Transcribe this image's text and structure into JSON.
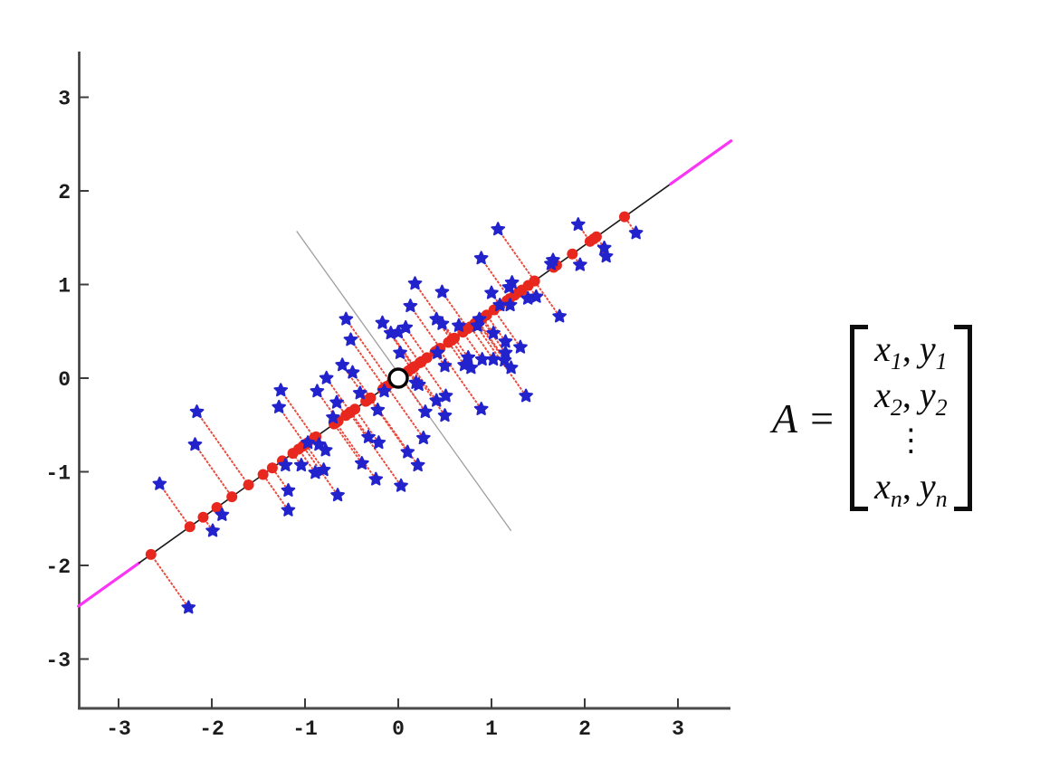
{
  "chart_data": {
    "type": "scatter",
    "title": "",
    "xlabel": "",
    "ylabel": "",
    "xlim": [
      -3.5,
      3.6
    ],
    "ylim": [
      -3.6,
      3.5
    ],
    "x_ticks": [
      "-3",
      "-2",
      "-1",
      "0",
      "1",
      "2",
      "3"
    ],
    "y_ticks": [
      "3",
      "2",
      "1",
      "0",
      "-1",
      "-2",
      "-3"
    ],
    "grid": false,
    "legend": null,
    "series": [
      {
        "name": "samples",
        "marker": "star",
        "color": "#2323cd",
        "points": [
          [
            -2.56,
            -1.13
          ],
          [
            -2.25,
            -2.45
          ],
          [
            -2.18,
            -0.71
          ],
          [
            -2.16,
            -0.36
          ],
          [
            -1.99,
            -1.63
          ],
          [
            -1.89,
            -1.46
          ],
          [
            -1.28,
            -0.31
          ],
          [
            -1.26,
            -0.13
          ],
          [
            -1.21,
            -0.93
          ],
          [
            -1.18,
            -1.41
          ],
          [
            -1.18,
            -1.2
          ],
          [
            -1.04,
            -0.93
          ],
          [
            -0.97,
            -0.69
          ],
          [
            -0.89,
            -1.01
          ],
          [
            -0.87,
            -0.14
          ],
          [
            -0.85,
            -0.71
          ],
          [
            -0.8,
            -0.98
          ],
          [
            -0.78,
            -0.77
          ],
          [
            -0.77,
            0.0
          ],
          [
            -0.7,
            -0.42
          ],
          [
            -0.66,
            -0.26
          ],
          [
            -0.65,
            -1.25
          ],
          [
            -0.6,
            0.14
          ],
          [
            -0.56,
            0.63
          ],
          [
            -0.51,
            0.41
          ],
          [
            -0.49,
            0.06
          ],
          [
            -0.41,
            -0.16
          ],
          [
            -0.39,
            -0.91
          ],
          [
            -0.32,
            -0.63
          ],
          [
            -0.24,
            -1.08
          ],
          [
            -0.22,
            -0.34
          ],
          [
            -0.21,
            -0.69
          ],
          [
            -0.17,
            0.59
          ],
          [
            -0.15,
            -0.14
          ],
          [
            -0.08,
            0.48
          ],
          [
            0.0,
            0.49
          ],
          [
            0.02,
            0.27
          ],
          [
            0.03,
            -1.15
          ],
          [
            0.08,
            0.54
          ],
          [
            0.1,
            -0.79
          ],
          [
            0.13,
            0.77
          ],
          [
            0.18,
            1.01
          ],
          [
            0.19,
            -0.05
          ],
          [
            0.21,
            -0.93
          ],
          [
            0.22,
            -0.07
          ],
          [
            0.27,
            -0.64
          ],
          [
            0.29,
            -0.36
          ],
          [
            0.41,
            -0.24
          ],
          [
            0.41,
            0.63
          ],
          [
            0.42,
            0.27
          ],
          [
            0.47,
            0.58
          ],
          [
            0.47,
            0.92
          ],
          [
            0.5,
            -0.4
          ],
          [
            0.5,
            0.13
          ],
          [
            0.51,
            -0.19
          ],
          [
            0.65,
            0.56
          ],
          [
            0.71,
            0.14
          ],
          [
            0.75,
            0.22
          ],
          [
            0.78,
            0.11
          ],
          [
            0.85,
            0.56
          ],
          [
            0.87,
            0.63
          ],
          [
            0.89,
            -0.33
          ],
          [
            0.89,
            1.28
          ],
          [
            0.9,
            0.2
          ],
          [
            1.0,
            0.91
          ],
          [
            1.02,
            0.2
          ],
          [
            1.02,
            0.48
          ],
          [
            1.07,
            1.59
          ],
          [
            1.09,
            0.78
          ],
          [
            1.14,
            0.19
          ],
          [
            1.15,
            0.39
          ],
          [
            1.15,
            0.27
          ],
          [
            1.19,
            0.97
          ],
          [
            1.2,
            0.78
          ],
          [
            1.21,
            0.11
          ],
          [
            1.22,
            1.02
          ],
          [
            1.31,
            0.33
          ],
          [
            1.37,
            -0.19
          ],
          [
            1.39,
            0.85
          ],
          [
            1.48,
            0.87
          ],
          [
            1.64,
            1.22
          ],
          [
            1.66,
            1.26
          ],
          [
            1.73,
            0.66
          ],
          [
            1.93,
            1.64
          ],
          [
            1.95,
            1.21
          ],
          [
            2.21,
            1.39
          ],
          [
            2.23,
            1.3
          ],
          [
            2.55,
            1.55
          ]
        ]
      },
      {
        "name": "projections-onto-principal-axis",
        "marker": "dot",
        "color": "#e8281e",
        "derived_from": "samples",
        "rule": "orthogonal projection of each sample onto the line y = 0.71x"
      }
    ],
    "lines": [
      {
        "name": "first-principal-axis",
        "slope": 0.71,
        "intercept": 0,
        "segments": [
          {
            "x": [
              -3.43,
              -2.78
            ],
            "color": "#fb34f5",
            "width": 3.2
          },
          {
            "x": [
              -2.78,
              2.92
            ],
            "color": "#1a1a1a",
            "width": 1.6
          },
          {
            "x": [
              2.92,
              3.57
            ],
            "color": "#fb34f5",
            "width": 3.2
          }
        ]
      },
      {
        "name": "second-principal-axis",
        "color": "#9e9e9e",
        "width": 1.3,
        "from": [
          -1.09,
          1.57
        ],
        "to": [
          1.21,
          -1.63
        ]
      }
    ],
    "projection_line_style": {
      "color": "#ea4a3e",
      "width": 1.9,
      "dash": "3 1.4"
    },
    "annotations": [
      {
        "name": "origin-marker",
        "shape": "open-circle",
        "x": 0,
        "y": 0,
        "radius_px": 10,
        "stroke": "#000000",
        "fill": "#ffffff"
      }
    ]
  },
  "equation": {
    "lhs": "A",
    "equals": "=",
    "separator": ",",
    "vdots": "⋮",
    "rows": [
      {
        "x": "x",
        "xsub": "1",
        "y": "y",
        "ysub": "1"
      },
      {
        "x": "x",
        "xsub": "2",
        "y": "y",
        "ysub": "2"
      },
      {
        "x": "x",
        "xsub": "n",
        "y": "y",
        "ysub": "n"
      }
    ]
  }
}
